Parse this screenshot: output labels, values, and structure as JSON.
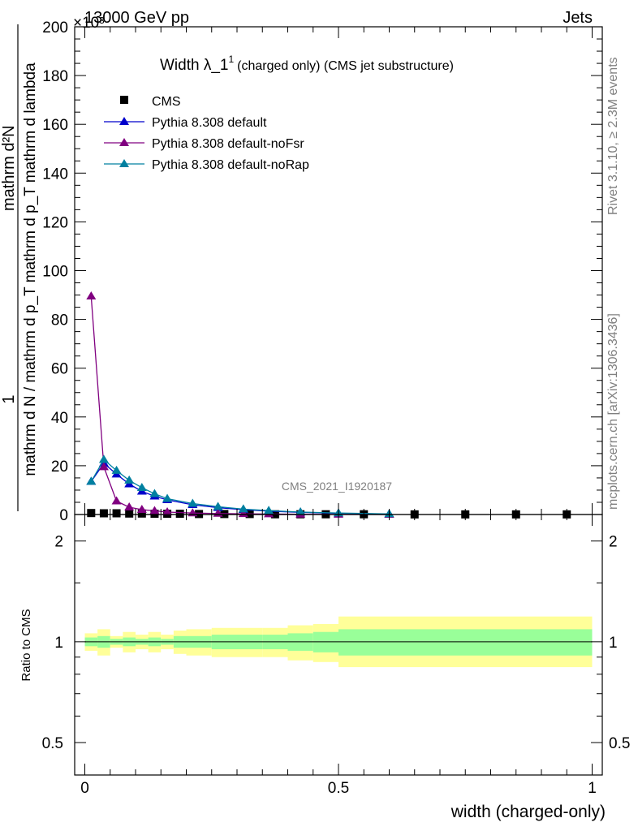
{
  "header": {
    "left": "13000 GeV pp",
    "right": "Jets",
    "exponent": "×10³"
  },
  "side_text": {
    "rivet": "Rivet 3.1.10, ≥ 2.3M events",
    "mcplots": "mcplots.cern.ch [arXiv:1306.3436]"
  },
  "watermark": "CMS_2021_I1920187",
  "chart_data": [
    {
      "type": "line",
      "title": "Width λ_1¹ (charged only) (CMS jet substructure)",
      "title_main": "Width λ_1",
      "title_sup": "1",
      "title_rest": "(charged only) (CMS jet substructure)",
      "ylabel_num": "1",
      "ylabel_denom": "mathrm d N / mathrm d p_T mathrm d p_T mathrm d lambda",
      "ylabel_top": "mathrm d²N",
      "ylim": [
        0,
        200
      ],
      "yticks": [
        0,
        20,
        40,
        60,
        80,
        100,
        120,
        140,
        160,
        180,
        200
      ],
      "xlim": [
        -0.02,
        1.02
      ],
      "grid": false,
      "legend_position": "top-left",
      "series": [
        {
          "name": "CMS",
          "marker": "square",
          "color": "#000000",
          "x": [
            0.0125,
            0.0375,
            0.0625,
            0.0875,
            0.1125,
            0.1375,
            0.1625,
            0.1875,
            0.225,
            0.275,
            0.325,
            0.375,
            0.425,
            0.475,
            0.55,
            0.65,
            0.75,
            0.85,
            0.95
          ],
          "y": [
            0.6,
            0.5,
            0.5,
            0.4,
            0.4,
            0.3,
            0.3,
            0.3,
            0.2,
            0.2,
            0.2,
            0.1,
            0.1,
            0.1,
            0.1,
            0.05,
            0.05,
            0.05,
            0.05
          ]
        },
        {
          "name": "Pythia 8.308 default",
          "marker": "triangle",
          "color": "#0000cc",
          "x": [
            0.0125,
            0.0375,
            0.0625,
            0.0875,
            0.1125,
            0.1375,
            0.1625,
            0.2125,
            0.2625,
            0.3125,
            0.3625,
            0.425,
            0.5,
            0.6
          ],
          "y": [
            13.5,
            21.0,
            16.5,
            12.5,
            9.5,
            7.5,
            6.0,
            4.0,
            2.8,
            2.0,
            1.4,
            0.9,
            0.5,
            0.2
          ]
        },
        {
          "name": "Pythia 8.308 default-noFsr",
          "marker": "triangle",
          "color": "#800080",
          "x": [
            0.0125,
            0.0375,
            0.0625,
            0.0875,
            0.1125,
            0.1375,
            0.1625,
            0.2125,
            0.2625,
            0.3125,
            0.3625,
            0.425,
            0.5,
            0.6
          ],
          "y": [
            89.5,
            19.5,
            5.5,
            3.0,
            2.0,
            1.5,
            1.0,
            0.6,
            0.4,
            0.3,
            0.2,
            0.1,
            0.05,
            0.02
          ]
        },
        {
          "name": "Pythia 8.308 default-noRap",
          "marker": "triangle",
          "color": "#0080a0",
          "x": [
            0.0125,
            0.0375,
            0.0625,
            0.0875,
            0.1125,
            0.1375,
            0.1625,
            0.2125,
            0.2625,
            0.3125,
            0.3625,
            0.425,
            0.5,
            0.6
          ],
          "y": [
            13.5,
            22.5,
            18.0,
            14.0,
            11.0,
            8.5,
            6.5,
            4.5,
            3.2,
            2.2,
            1.6,
            1.0,
            0.6,
            0.25
          ]
        }
      ]
    },
    {
      "type": "area",
      "ylabel": "Ratio to CMS",
      "xlabel": "width (charged-only)",
      "yscale": "log",
      "ylim": [
        0.4,
        2.4
      ],
      "yticks": [
        0.5,
        1,
        2
      ],
      "ytick_labels": [
        "0.5",
        "1",
        "2"
      ],
      "xticks": [
        0,
        0.5,
        1
      ],
      "xtick_labels": [
        "0",
        "0.5",
        "1"
      ],
      "xlim": [
        -0.02,
        1.02
      ],
      "reference": 1,
      "bins": [
        0,
        0.025,
        0.05,
        0.075,
        0.1,
        0.125,
        0.15,
        0.175,
        0.2,
        0.25,
        0.3,
        0.35,
        0.4,
        0.45,
        0.5,
        1.0
      ],
      "band_inner": [
        [
          0.97,
          1.03
        ],
        [
          0.96,
          1.04
        ],
        [
          0.98,
          1.02
        ],
        [
          0.97,
          1.03
        ],
        [
          0.98,
          1.02
        ],
        [
          0.97,
          1.03
        ],
        [
          0.98,
          1.02
        ],
        [
          0.96,
          1.04
        ],
        [
          0.96,
          1.04
        ],
        [
          0.95,
          1.05
        ],
        [
          0.95,
          1.05
        ],
        [
          0.95,
          1.05
        ],
        [
          0.94,
          1.06
        ],
        [
          0.93,
          1.07
        ],
        [
          0.91,
          1.09
        ]
      ],
      "band_outer": [
        [
          0.94,
          1.06
        ],
        [
          0.91,
          1.09
        ],
        [
          0.96,
          1.04
        ],
        [
          0.93,
          1.07
        ],
        [
          0.95,
          1.05
        ],
        [
          0.93,
          1.07
        ],
        [
          0.95,
          1.05
        ],
        [
          0.92,
          1.08
        ],
        [
          0.91,
          1.09
        ],
        [
          0.9,
          1.1
        ],
        [
          0.9,
          1.1
        ],
        [
          0.9,
          1.1
        ],
        [
          0.88,
          1.12
        ],
        [
          0.87,
          1.13
        ],
        [
          0.84,
          1.19
        ]
      ],
      "band_inner_color": "#99ff99",
      "band_outer_color": "#ffff99"
    }
  ]
}
